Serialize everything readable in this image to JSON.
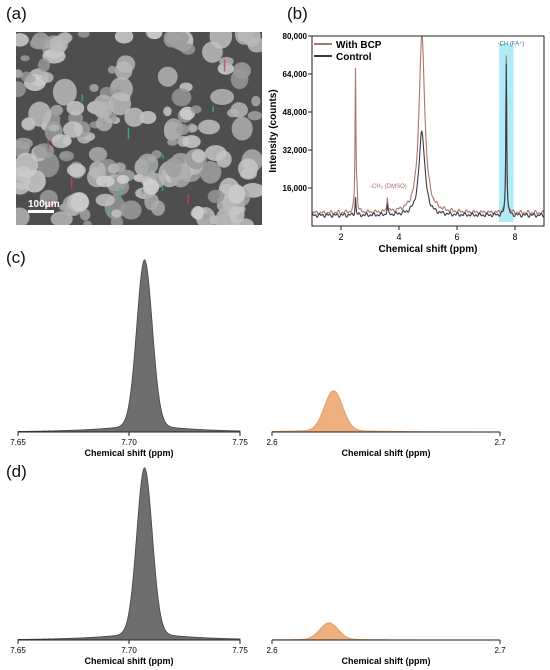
{
  "panels": {
    "a": "(a)",
    "b": "(b)",
    "c": "(c)",
    "d": "(d)"
  },
  "micrograph": {
    "scale_label": "100μm"
  },
  "chart_data": [
    {
      "id": "b",
      "type": "line",
      "xlabel": "Chemical shift (ppm)",
      "ylabel": "Intensity (counts)",
      "xlim": [
        1,
        9
      ],
      "ylim": [
        0,
        80000
      ],
      "xticks": [
        2,
        4,
        6,
        8
      ],
      "yticks": [
        16000,
        32000,
        48000,
        64000,
        80000
      ],
      "ytick_labels": [
        "16,000",
        "32,000",
        "48,000",
        "64,000",
        "80,000"
      ],
      "legend_position": "top-left",
      "series": [
        {
          "name": "With BCP",
          "color": "#a9766a",
          "peaks": [
            {
              "x": 2.5,
              "height": 66000
            },
            {
              "x": 2.55,
              "height": 12000
            },
            {
              "x": 3.6,
              "height": 12000
            },
            {
              "x": 4.79,
              "height": 80000
            },
            {
              "x": 7.7,
              "height": 71000
            }
          ],
          "baseline": 5500
        },
        {
          "name": "Control",
          "color": "#3a3a4a",
          "peaks": [
            {
              "x": 2.5,
              "height": 12000
            },
            {
              "x": 3.6,
              "height": 9000
            },
            {
              "x": 4.79,
              "height": 40000
            },
            {
              "x": 7.7,
              "height": 69000
            }
          ],
          "baseline": 4500
        }
      ],
      "annotations": [
        {
          "text": "-CH (FA⁺)",
          "x": 7.4,
          "y": 76000
        },
        {
          "text": "-CH₃ (DMSO)",
          "x": 3.0,
          "y": 16000
        }
      ],
      "highlight": {
        "x0": 7.45,
        "x1": 7.95
      }
    },
    {
      "id": "c-left",
      "type": "area",
      "xlabel": "Chemical shift (ppm)",
      "xlim": [
        7.65,
        7.75
      ],
      "xticks": [
        7.65,
        7.7,
        7.75
      ],
      "xtick_labels": [
        "7.65",
        "7.70",
        "7.75"
      ],
      "peak": {
        "center": 7.707,
        "sigma": 0.0035,
        "height": 1.0
      },
      "color": "#6e6e6e"
    },
    {
      "id": "c-right",
      "type": "area",
      "xlabel": "Chemical shift (ppm)",
      "xlim": [
        2.6,
        2.7
      ],
      "xticks": [
        2.6,
        2.7
      ],
      "xtick_labels": [
        "2.6",
        "2.7"
      ],
      "peak": {
        "center": 2.627,
        "sigma": 0.004,
        "height": 0.24
      },
      "color": "#efb080"
    },
    {
      "id": "d-left",
      "type": "area",
      "xlabel": "Chemical shift (ppm)",
      "xlim": [
        7.65,
        7.75
      ],
      "xticks": [
        7.65,
        7.7,
        7.75
      ],
      "xtick_labels": [
        "7.65",
        "7.70",
        "7.75"
      ],
      "peak": {
        "center": 7.707,
        "sigma": 0.0035,
        "height": 1.0
      },
      "color": "#6e6e6e"
    },
    {
      "id": "d-right",
      "type": "area",
      "xlabel": "Chemical shift (ppm)",
      "xlim": [
        2.6,
        2.7
      ],
      "xticks": [
        2.6,
        2.7
      ],
      "xtick_labels": [
        "2.6",
        "2.7"
      ],
      "peak": {
        "center": 2.625,
        "sigma": 0.004,
        "height": 0.1
      },
      "color": "#efb080"
    }
  ]
}
